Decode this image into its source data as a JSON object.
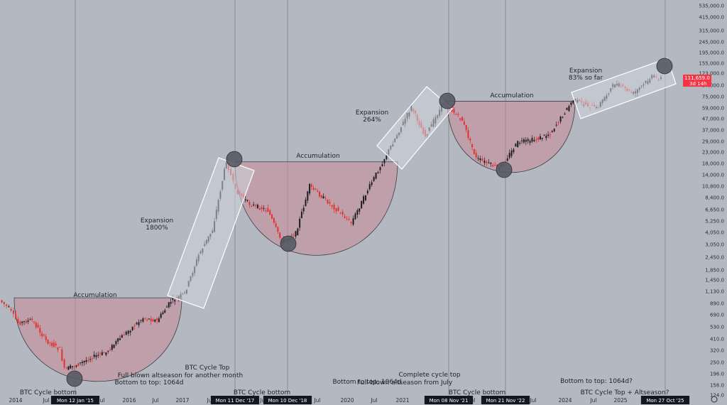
{
  "colors": {
    "background": "#b4b8c1",
    "candle_up": "#1e1e1e",
    "candle_down": "#e03030",
    "zone_fill": "#c98b96",
    "price_tag": "#f23645"
  },
  "chart_data": {
    "type": "candlestick",
    "scale": "log",
    "x_ticks": [
      "2014",
      "Jul",
      "Mon 12 Jan '15",
      "Jul",
      "2016",
      "Jul",
      "2017",
      "Jul",
      "Mon 11 Dec '17",
      "Jul",
      "Mon 10 Dec '18",
      "Jul",
      "2020",
      "Jul",
      "2021",
      "Jul",
      "Mon 08 Nov '21",
      "Jul",
      "Mon 21 Nov '22",
      "Jul",
      "2024",
      "Jul",
      "2025",
      "Jul",
      "Mon 27 Oct '25"
    ],
    "y_ticks": [
      "535,000.0",
      "415,000.0",
      "315,000.0",
      "245,000.0",
      "195,000.0",
      "155,000.0",
      "123,000.0",
      "97,000.0",
      "75,000.0",
      "59,000.0",
      "47,000.0",
      "37,000.0",
      "29,000.0",
      "23,000.0",
      "18,000.0",
      "14,000.0",
      "10,800.0",
      "8,400.0",
      "6,650.0",
      "5,250.0",
      "4,050.0",
      "3,050.0",
      "2,450.0",
      "1,850.0",
      "1,450.0",
      "1,130.0",
      "890.0",
      "690.0",
      "530.0",
      "410.0",
      "320.0",
      "250.0",
      "196.0",
      "156.0",
      "124.0"
    ],
    "current_price": "111,659.0",
    "countdown": "3d 14h",
    "price_series": [
      {
        "date": "2013-11",
        "price": 950
      },
      {
        "date": "2014-01",
        "price": 800
      },
      {
        "date": "2014-03",
        "price": 580
      },
      {
        "date": "2014-06",
        "price": 620
      },
      {
        "date": "2014-09",
        "price": 400
      },
      {
        "date": "2014-12",
        "price": 330
      },
      {
        "date": "2015-01",
        "price": 215
      },
      {
        "date": "2015-04",
        "price": 240
      },
      {
        "date": "2015-07",
        "price": 280
      },
      {
        "date": "2015-10",
        "price": 310
      },
      {
        "date": "2016-01",
        "price": 420
      },
      {
        "date": "2016-06",
        "price": 650
      },
      {
        "date": "2016-09",
        "price": 610
      },
      {
        "date": "2016-12",
        "price": 930
      },
      {
        "date": "2017-03",
        "price": 1100
      },
      {
        "date": "2017-06",
        "price": 2500
      },
      {
        "date": "2017-09",
        "price": 4300
      },
      {
        "date": "2017-12",
        "price": 19000
      },
      {
        "date": "2018-02",
        "price": 10000
      },
      {
        "date": "2018-05",
        "price": 7500
      },
      {
        "date": "2018-09",
        "price": 6500
      },
      {
        "date": "2018-12",
        "price": 3300
      },
      {
        "date": "2019-03",
        "price": 4000
      },
      {
        "date": "2019-06",
        "price": 11000
      },
      {
        "date": "2019-09",
        "price": 8500
      },
      {
        "date": "2020-03",
        "price": 5000
      },
      {
        "date": "2020-07",
        "price": 11000
      },
      {
        "date": "2020-12",
        "price": 28000
      },
      {
        "date": "2021-04",
        "price": 60000
      },
      {
        "date": "2021-07",
        "price": 32000
      },
      {
        "date": "2021-11",
        "price": 66000
      },
      {
        "date": "2022-03",
        "price": 45000
      },
      {
        "date": "2022-06",
        "price": 20000
      },
      {
        "date": "2022-11",
        "price": 16000
      },
      {
        "date": "2023-03",
        "price": 28000
      },
      {
        "date": "2023-07",
        "price": 30000
      },
      {
        "date": "2023-10",
        "price": 34000
      },
      {
        "date": "2024-03",
        "price": 70000
      },
      {
        "date": "2024-08",
        "price": 58000
      },
      {
        "date": "2024-12",
        "price": 100000
      },
      {
        "date": "2025-04",
        "price": 80000
      },
      {
        "date": "2025-08",
        "price": 115000
      },
      {
        "date": "2025-10",
        "price": 111659
      }
    ]
  },
  "annotations": {
    "accumulation_1": "Accumulation",
    "accumulation_2": "Accumulation",
    "accumulation_3": "Accumulation",
    "expansion_1": "Expansion",
    "expansion_1_pct": "1800%",
    "expansion_2": "Expansion",
    "expansion_2_pct": "264%",
    "expansion_3": "Expansion",
    "expansion_3_pct": "83% so far",
    "btc_cycle_bottom_1": "BTC Cycle bottom",
    "bottom_to_top_1": "Bottom to top: 1064d",
    "btc_cycle_top_1": "BTC Cycle Top",
    "full_blown_altseason_1": "Full blown altseason for another month",
    "btc_cycle_bottom_2": "BTC Cycle bottom",
    "bottom_to_top_2": "Bottom to top: 1064d",
    "complete_cycle_top": "Complete cycle top",
    "full_blown_altseason_2": "Full-blown altseason from July",
    "btc_cycle_bottom_3": "BTC Cycle bottom",
    "bottom_to_top_3": "Bottom to top: 1064d?",
    "btc_cycle_top_altseason": "BTC Cycle Top + Altseason?"
  }
}
